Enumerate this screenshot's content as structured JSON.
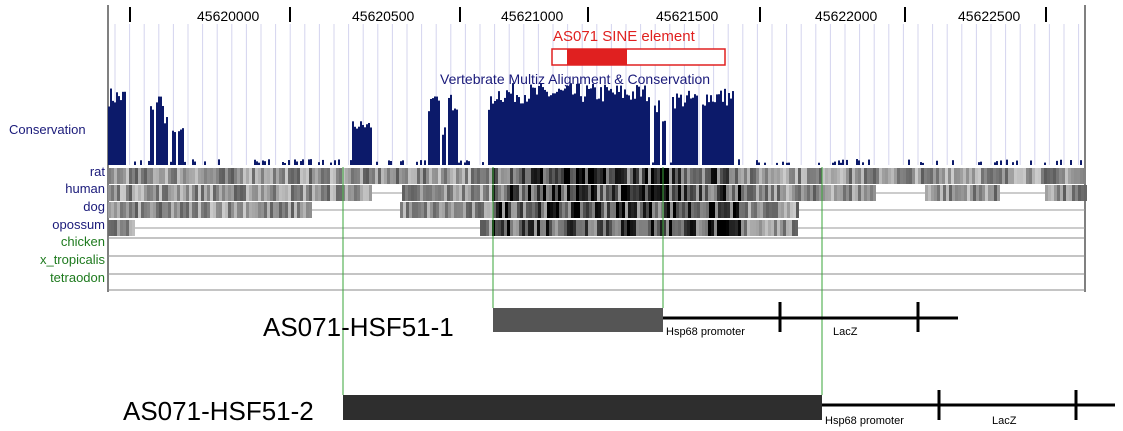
{
  "ruler": {
    "ticks": [
      "45620000",
      "45620500",
      "45621000",
      "45621500",
      "45622000",
      "45622500"
    ]
  },
  "sine_track": {
    "label": "AS071 SINE element",
    "color": "#e02020"
  },
  "conservation_track": {
    "title": "Vertebrate Multiz Alignment & Conservation",
    "side_label": "Conservation",
    "color": "#0c1a6a"
  },
  "species": [
    {
      "name": "rat",
      "color": "#1a1a7a"
    },
    {
      "name": "human",
      "color": "#1a1a7a"
    },
    {
      "name": "dog",
      "color": "#1a1a7a"
    },
    {
      "name": "opossum",
      "color": "#1a1a7a"
    },
    {
      "name": "chicken",
      "color": "#1e7a1e"
    },
    {
      "name": "x_tropicalis",
      "color": "#1e7a1e"
    },
    {
      "name": "tetraodon",
      "color": "#1e7a1e"
    }
  ],
  "constructs": [
    {
      "name": "AS071-HSF51-1",
      "promoter_label": "Hsp68 promoter",
      "reporter_label": "LacZ"
    },
    {
      "name": "AS071-HSF51-2",
      "promoter_label": "Hsp68 promoter",
      "reporter_label": "LacZ"
    }
  ]
}
